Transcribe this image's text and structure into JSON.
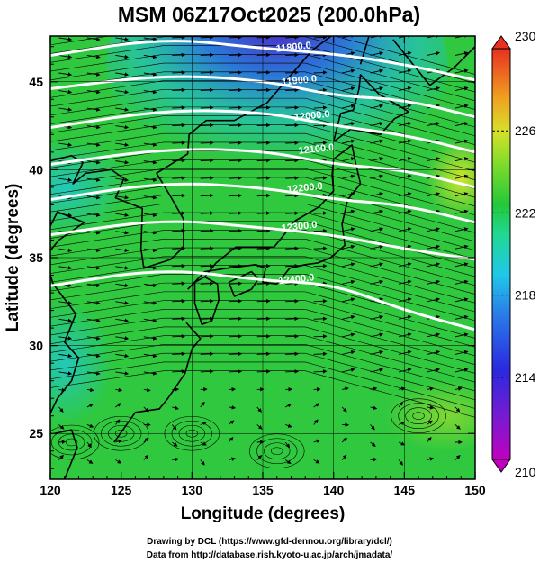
{
  "chart_data": {
    "type": "heatmap",
    "title": "MSM 06Z17Oct2025 (200.0hPa)",
    "xlabel": "Longitude (degrees)",
    "ylabel": "Latitude  (degrees)",
    "xlim": [
      120,
      150
    ],
    "ylim": [
      22.4,
      47.6
    ],
    "xticks": [
      "120",
      "125",
      "130",
      "135",
      "140",
      "145",
      "150"
    ],
    "xtick_values": [
      120,
      125,
      130,
      135,
      140,
      145,
      150
    ],
    "yticks": [
      "25",
      "30",
      "35",
      "40",
      "45"
    ],
    "ytick_values": [
      25,
      30,
      35,
      40,
      45
    ],
    "colorbar": {
      "min": 210,
      "max": 230,
      "ticks": [
        "230",
        "226",
        "222",
        "218",
        "214",
        "210"
      ],
      "tick_values": [
        230,
        226,
        222,
        218,
        214,
        210
      ]
    },
    "contours": [
      {
        "label": "11800.0",
        "lat_at": [
          [
            120,
            46.5
          ],
          [
            128,
            47.5
          ],
          [
            135,
            46.9
          ],
          [
            140,
            46.6
          ],
          [
            145,
            46.0
          ],
          [
            150,
            45.1
          ]
        ]
      },
      {
        "label": "11900.0",
        "lat_at": [
          [
            120,
            44.6
          ],
          [
            128,
            45.4
          ],
          [
            135,
            45.1
          ],
          [
            140,
            44.2
          ],
          [
            145,
            44.0
          ],
          [
            150,
            43.0
          ]
        ]
      },
      {
        "label": "12000.0",
        "lat_at": [
          [
            120,
            42.4
          ],
          [
            128,
            43.4
          ],
          [
            135,
            43.3
          ],
          [
            140,
            42.5
          ],
          [
            145,
            42.0
          ],
          [
            150,
            41.0
          ]
        ]
      },
      {
        "label": "12100.0",
        "lat_at": [
          [
            120,
            40.3
          ],
          [
            128,
            41.2
          ],
          [
            135,
            41.1
          ],
          [
            140,
            40.3
          ],
          [
            145,
            40.0
          ],
          [
            150,
            39.0
          ]
        ]
      },
      {
        "label": "12200.0",
        "lat_at": [
          [
            120,
            38.3
          ],
          [
            128,
            39.3
          ],
          [
            135,
            39.0
          ],
          [
            140,
            38.3
          ],
          [
            145,
            38.0
          ],
          [
            150,
            37.0
          ]
        ]
      },
      {
        "label": "12300.0",
        "lat_at": [
          [
            120,
            36.3
          ],
          [
            128,
            37.2
          ],
          [
            135,
            36.7
          ],
          [
            140,
            36.3
          ],
          [
            145,
            35.5
          ],
          [
            150,
            34.9
          ]
        ]
      },
      {
        "label": "12400.0",
        "lat_at": [
          [
            120,
            33.4
          ],
          [
            128,
            34.4
          ],
          [
            135,
            33.7
          ],
          [
            140,
            33.5
          ],
          [
            145,
            32.0
          ],
          [
            150,
            30.9
          ]
        ]
      }
    ],
    "label_positions": [
      {
        "index": 0,
        "lon": 137.2,
        "lat": 46.8
      },
      {
        "index": 1,
        "lon": 137.6,
        "lat": 44.9
      },
      {
        "index": 2,
        "lon": 138.5,
        "lat": 42.9
      },
      {
        "index": 3,
        "lon": 138.8,
        "lat": 41.0
      },
      {
        "index": 4,
        "lon": 138.0,
        "lat": 38.8
      },
      {
        "index": 5,
        "lon": 137.6,
        "lat": 36.6
      },
      {
        "index": 6,
        "lon": 137.4,
        "lat": 33.6
      }
    ]
  },
  "credits": {
    "line1": "Drawing by DCL (https://www.gfd-dennou.org/library/dcl/)",
    "line2": "Data from http://database.rish.kyoto-u.ac.jp/arch/jmadata/"
  },
  "colors": {
    "field_blue": "#2a63e6",
    "field_cyan": "#22d7d7",
    "field_green": "#27c73b",
    "field_yellow": "#c8e62a",
    "contour": "#ffffff",
    "vector": "#000000"
  }
}
